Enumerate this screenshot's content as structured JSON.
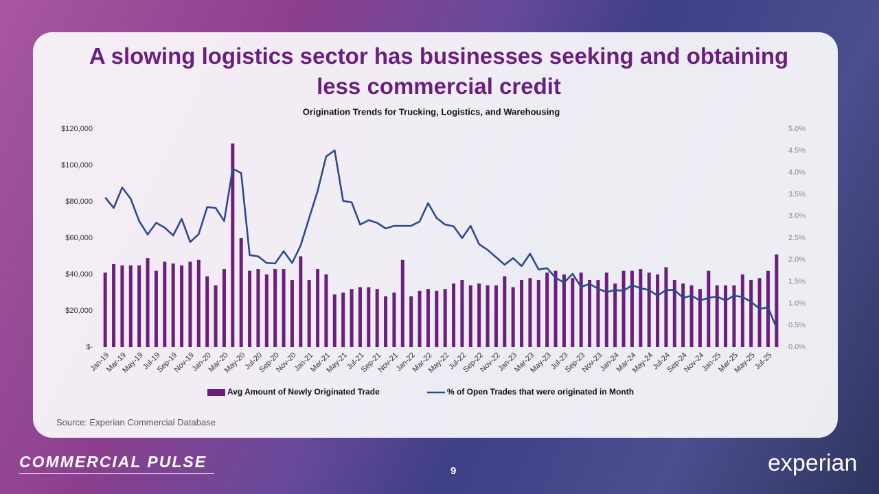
{
  "slide": {
    "title": "A slowing logistics sector has businesses seeking and obtaining less commercial credit",
    "source": "Source: Experian Commercial Database",
    "brand": "COMMERCIAL PULSE",
    "page_number": "9",
    "logo": "experian"
  },
  "chart_data": {
    "type": "bar_line",
    "title": "Origination Trends for Trucking, Logistics, and Warehousing",
    "categories": [
      "Jan-19",
      null,
      "Mar-19",
      null,
      "May-19",
      null,
      "Jul-19",
      null,
      "Sep-19",
      null,
      "Nov-19",
      null,
      "Jan-20",
      null,
      "Mar-20",
      null,
      "May-20",
      null,
      "Jul-20",
      null,
      "Sep-20",
      null,
      "Nov-20",
      null,
      "Jan-21",
      null,
      "Mar-21",
      null,
      "May-21",
      null,
      "Jul-21",
      null,
      "Sep-21",
      null,
      "Nov-21",
      null,
      "Jan-22",
      null,
      "Mar-22",
      null,
      "May-22",
      null,
      "Jul-22",
      null,
      "Sep-22",
      null,
      "Nov-22",
      null,
      "Jan-23",
      null,
      "Mar-23",
      null,
      "May-23",
      null,
      "Jul-23",
      null,
      "Sep-23",
      null,
      "Nov-23",
      null,
      "Jan-24",
      null,
      "Mar-24",
      null,
      "May-24",
      null,
      "Jul-24",
      null,
      "Sep-24",
      null,
      "Nov-24",
      null,
      "Jan-25",
      null,
      "Mar-25",
      null,
      "May-25",
      null,
      "Jul-25",
      null
    ],
    "series": [
      {
        "name": "Avg Amount of Newly Originated Trade",
        "kind": "bar",
        "color": "#6b1f7b",
        "values": [
          41000,
          45700,
          45000,
          45000,
          45000,
          49000,
          42000,
          47000,
          46000,
          45000,
          47000,
          48000,
          39000,
          34000,
          43000,
          112000,
          60000,
          42000,
          43000,
          40000,
          43000,
          43000,
          37000,
          50000,
          37000,
          43000,
          40000,
          29000,
          30000,
          32000,
          33000,
          33000,
          32000,
          28000,
          30000,
          48000,
          28000,
          31000,
          32000,
          31000,
          32000,
          35000,
          37000,
          34000,
          35000,
          34000,
          34000,
          39000,
          33000,
          37000,
          38000,
          37000,
          41000,
          42000,
          40000,
          38000,
          41000,
          37000,
          37000,
          41000,
          35000,
          42000,
          42000,
          43000,
          41000,
          40000,
          44000,
          37000,
          35000,
          34000,
          32000,
          42000,
          34000,
          34000,
          34000,
          40000,
          37000,
          38000,
          42000,
          51000
        ]
      },
      {
        "name": "% of Open Trades that were originated in Month",
        "kind": "line",
        "axis": "y2",
        "color": "#2b4a8e",
        "values": [
          3.43,
          3.19,
          3.66,
          3.4,
          2.89,
          2.58,
          2.85,
          2.74,
          2.56,
          2.94,
          2.41,
          2.59,
          3.21,
          3.19,
          2.89,
          4.09,
          3.99,
          2.11,
          2.08,
          1.93,
          1.92,
          2.2,
          1.93,
          2.33,
          2.96,
          3.58,
          4.37,
          4.51,
          3.35,
          3.32,
          2.81,
          2.91,
          2.85,
          2.72,
          2.78,
          2.78,
          2.78,
          2.88,
          3.3,
          2.96,
          2.81,
          2.77,
          2.5,
          2.78,
          2.36,
          2.23,
          2.06,
          1.89,
          2.04,
          1.86,
          2.14,
          1.78,
          1.81,
          1.59,
          1.48,
          1.68,
          1.38,
          1.45,
          1.34,
          1.26,
          1.31,
          1.29,
          1.42,
          1.35,
          1.31,
          1.18,
          1.31,
          1.31,
          1.13,
          1.18,
          1.07,
          1.13,
          1.16,
          1.07,
          1.18,
          1.15,
          1.04,
          0.88,
          0.91,
          0.44
        ]
      }
    ],
    "ylim": [
      0,
      120000
    ],
    "yticks": [
      {
        "value": 0,
        "label": "$-"
      },
      {
        "value": 20000,
        "label": "$20,000"
      },
      {
        "value": 40000,
        "label": "$40,000"
      },
      {
        "value": 60000,
        "label": "$60,000"
      },
      {
        "value": 80000,
        "label": "$80,000"
      },
      {
        "value": 100000,
        "label": "$100,000"
      },
      {
        "value": 120000,
        "label": "$120,000"
      }
    ],
    "y2lim": [
      0,
      5
    ],
    "y2ticks": [
      {
        "value": 0,
        "label": "0.0%"
      },
      {
        "value": 0.5,
        "label": "0.5%"
      },
      {
        "value": 1,
        "label": "1.0%"
      },
      {
        "value": 1.5,
        "label": "1.5%"
      },
      {
        "value": 2,
        "label": "2.0%"
      },
      {
        "value": 2.5,
        "label": "2.5%"
      },
      {
        "value": 3,
        "label": "3.0%"
      },
      {
        "value": 3.5,
        "label": "3.5%"
      },
      {
        "value": 4,
        "label": "4.0%"
      },
      {
        "value": 4.5,
        "label": "4.5%"
      },
      {
        "value": 5,
        "label": "5.0%"
      }
    ],
    "legend": "bottom",
    "grid": false
  }
}
